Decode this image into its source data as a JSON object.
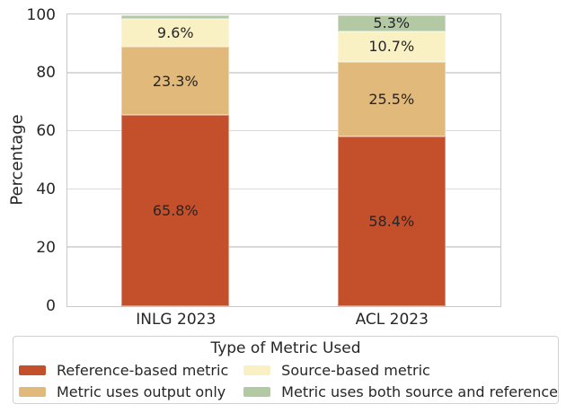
{
  "figure": {
    "background": "#ffffff",
    "text_color": "#262626",
    "grid_color": "#d9d9d9",
    "spine_color": "#c9c9c9"
  },
  "chart_data": {
    "type": "bar",
    "stacked": true,
    "categories": [
      "INLG 2023",
      "ACL 2023"
    ],
    "series": [
      {
        "name": "Reference-based metric",
        "color": "#c4502b",
        "values": [
          65.8,
          58.4
        ],
        "value_labels": [
          "65.8%",
          "58.4%"
        ]
      },
      {
        "name": "Metric uses output only",
        "color": "#e1b97b",
        "values": [
          23.3,
          25.5
        ],
        "value_labels": [
          "23.3%",
          "25.5%"
        ]
      },
      {
        "name": "Source-based metric",
        "color": "#f9f1c4",
        "values": [
          9.6,
          10.7
        ],
        "value_labels": [
          "9.6%",
          "10.7%"
        ]
      },
      {
        "name": "Metric uses both source and reference",
        "color": "#b3c9a4",
        "values": [
          1.3,
          5.3
        ],
        "value_labels": [
          "",
          "5.3%"
        ]
      }
    ],
    "title": "",
    "xlabel": "",
    "ylabel": "Percentage",
    "ylim": [
      0,
      100
    ],
    "yticks": [
      "0",
      "20",
      "40",
      "60",
      "80",
      "100"
    ],
    "grid": true,
    "legend": {
      "title": "Type of Metric Used",
      "position": "bottom",
      "columns": 2
    }
  }
}
